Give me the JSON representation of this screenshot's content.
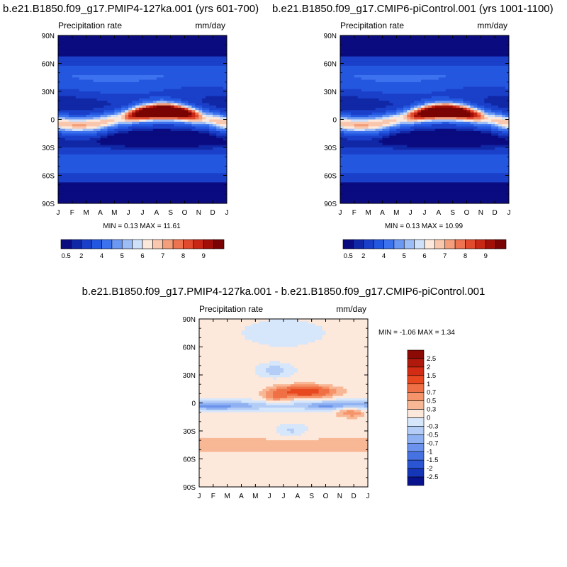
{
  "chart_data": [
    {
      "type": "heatmap",
      "id": "pmip4",
      "title": "b.e21.B1850.f09_g17.PMIP4-127ka.001 (yrs 601-700)",
      "left_label": "Precipitation rate",
      "right_label": "mm/day",
      "x_ticks": [
        "J",
        "F",
        "M",
        "A",
        "M",
        "J",
        "J",
        "A",
        "S",
        "O",
        "N",
        "D",
        "J"
      ],
      "y_ticks": [
        "90N",
        "60N",
        "30N",
        "0",
        "30S",
        "60S",
        "90S"
      ],
      "ylim": [
        -90,
        90
      ],
      "stats": "MIN =   0.13 MAX =  11.61",
      "colorbar": {
        "labels": [
          "0.5",
          "2",
          "4",
          "5",
          "6",
          "7",
          "8",
          "9"
        ],
        "colors": [
          "#0b0b80",
          "#1027a6",
          "#1a3fc8",
          "#2457e0",
          "#3d72ef",
          "#6b98f3",
          "#9dbdf7",
          "#cfe0fb",
          "#fde8dc",
          "#f9c7ad",
          "#f49e7b",
          "#ee7350",
          "#e24a2d",
          "#c82715",
          "#a10f08",
          "#7a0403"
        ]
      },
      "summary": {
        "itcz_peak_month": "Aug",
        "itcz_peak_value_mm_day": 11.61,
        "min_mm_day": 0.13
      }
    },
    {
      "type": "heatmap",
      "id": "picontrol",
      "title": "b.e21.B1850.f09_g17.CMIP6-piControl.001 (yrs 1001-1100)",
      "left_label": "Precipitation rate",
      "right_label": "mm/day",
      "x_ticks": [
        "J",
        "F",
        "M",
        "A",
        "M",
        "J",
        "J",
        "A",
        "S",
        "O",
        "N",
        "D",
        "J"
      ],
      "y_ticks": [
        "90N",
        "60N",
        "30N",
        "0",
        "30S",
        "60S",
        "90S"
      ],
      "ylim": [
        -90,
        90
      ],
      "stats": "MIN =   0.13 MAX =  10.99",
      "colorbar": {
        "labels": [
          "0.5",
          "2",
          "4",
          "5",
          "6",
          "7",
          "8",
          "9"
        ],
        "colors": [
          "#0b0b80",
          "#1027a6",
          "#1a3fc8",
          "#2457e0",
          "#3d72ef",
          "#6b98f3",
          "#9dbdf7",
          "#cfe0fb",
          "#fde8dc",
          "#f9c7ad",
          "#f49e7b",
          "#ee7350",
          "#e24a2d",
          "#c82715",
          "#a10f08",
          "#7a0403"
        ]
      },
      "summary": {
        "itcz_peak_month": "Aug",
        "itcz_peak_value_mm_day": 10.99,
        "min_mm_day": 0.13
      }
    },
    {
      "type": "heatmap",
      "id": "difference",
      "title": "b.e21.B1850.f09_g17.PMIP4-127ka.001 - b.e21.B1850.f09_g17.CMIP6-piControl.001",
      "left_label": "Precipitation rate",
      "right_label": "mm/day",
      "x_ticks": [
        "J",
        "F",
        "M",
        "A",
        "M",
        "J",
        "J",
        "A",
        "S",
        "O",
        "N",
        "D",
        "J"
      ],
      "y_ticks": [
        "90N",
        "60N",
        "30N",
        "0",
        "30S",
        "60S",
        "90S"
      ],
      "ylim": [
        -90,
        90
      ],
      "stats": "MIN =  -1.06 MAX =   1.34",
      "colorbar": {
        "labels": [
          "2.5",
          "2",
          "1.5",
          "1",
          "0.7",
          "0.5",
          "0.3",
          "0",
          "-0.3",
          "-0.5",
          "-0.7",
          "-1",
          "-1.5",
          "-2",
          "-2.5"
        ],
        "colors": [
          "#8c0a05",
          "#b01a0c",
          "#d22d14",
          "#e8481f",
          "#f07045",
          "#f5946b",
          "#f8b795",
          "#fde8dc",
          "#d6e6fb",
          "#b3cdf7",
          "#8fb1f2",
          "#6b92ec",
          "#4773e2",
          "#2a55d3",
          "#1636b8",
          "#08138d"
        ]
      },
      "summary": {
        "max_mm_day": 1.34,
        "min_mm_day": -1.06
      }
    }
  ]
}
